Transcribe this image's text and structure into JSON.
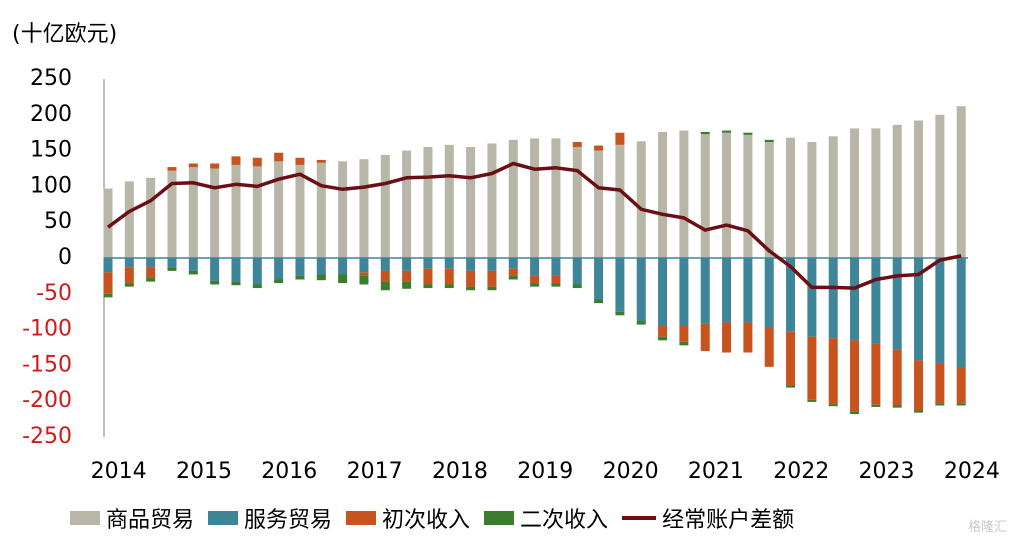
{
  "unit_label": "(十亿欧元)",
  "watermark": "格隆汇",
  "colors": {
    "goods": "#B8B6A6",
    "services": "#3D8597",
    "primary": "#C7531F",
    "secondary": "#3A7D2C",
    "current_account": "#6B0F14",
    "negative_tick": "#D11A1A",
    "zero_line": "#3D8597"
  },
  "chart_data": {
    "type": "bar",
    "stacked": true,
    "title": "",
    "xlabel": "",
    "ylabel": "(十亿欧元)",
    "ylim": [
      -250,
      250
    ],
    "yticks": [
      250,
      200,
      150,
      100,
      50,
      0,
      -50,
      -100,
      -150,
      -200,
      -250
    ],
    "year_labels": [
      "2014",
      "2015",
      "2016",
      "2017",
      "2018",
      "2019",
      "2020",
      "2021",
      "2022",
      "2023",
      "2024"
    ],
    "categories": [
      "2014Q1",
      "2014Q2",
      "2014Q3",
      "2014Q4",
      "2015Q1",
      "2015Q2",
      "2015Q3",
      "2015Q4",
      "2016Q1",
      "2016Q2",
      "2016Q3",
      "2016Q4",
      "2017Q1",
      "2017Q2",
      "2017Q3",
      "2017Q4",
      "2018Q1",
      "2018Q2",
      "2018Q3",
      "2018Q4",
      "2019Q1",
      "2019Q2",
      "2019Q3",
      "2019Q4",
      "2020Q1",
      "2020Q2",
      "2020Q3",
      "2020Q4",
      "2021Q1",
      "2021Q2",
      "2021Q3",
      "2021Q4",
      "2022Q1",
      "2022Q2",
      "2022Q3",
      "2022Q4",
      "2023Q1",
      "2023Q2",
      "2023Q3",
      "2023Q4",
      "2024Q1"
    ],
    "grid": false,
    "legend_position": "bottom",
    "series": [
      {
        "name": "商品贸易",
        "kind": "bar",
        "values": [
          97,
          107,
          112,
          122,
          127,
          125,
          130,
          128,
          135,
          130,
          133,
          135,
          138,
          144,
          150,
          155,
          158,
          155,
          160,
          165,
          167,
          167,
          155,
          150,
          158,
          163,
          176,
          178,
          173,
          175,
          172,
          162,
          168,
          162,
          170,
          181,
          181,
          186,
          192,
          200,
          212
        ]
      },
      {
        "name": "服务贸易",
        "kind": "bar",
        "values": [
          -20,
          -13,
          -13,
          -13,
          -18,
          -32,
          -33,
          -37,
          -30,
          -25,
          -23,
          -23,
          -20,
          -18,
          -18,
          -15,
          -15,
          -18,
          -18,
          -15,
          -25,
          -25,
          -37,
          -58,
          -75,
          -88,
          -95,
          -95,
          -92,
          -90,
          -90,
          -97,
          -103,
          -110,
          -112,
          -115,
          -120,
          -128,
          -143,
          -148,
          -153
        ]
      },
      {
        "name": "初次收入",
        "kind": "bar",
        "values": [
          -30,
          -22,
          -15,
          5,
          5,
          7,
          12,
          12,
          12,
          10,
          4,
          0,
          -5,
          -15,
          -15,
          -22,
          -22,
          -22,
          -22,
          -10,
          -10,
          -10,
          7,
          7,
          17,
          0,
          -15,
          -22,
          -38,
          -42,
          -42,
          -55,
          -75,
          -88,
          -92,
          -100,
          -85,
          -78,
          -70,
          -55,
          -50
        ]
      },
      {
        "name": "二次收入",
        "kind": "bar",
        "values": [
          -5,
          -5,
          -5,
          -5,
          -5,
          -5,
          -5,
          -5,
          -5,
          -5,
          -8,
          -12,
          -12,
          -12,
          -10,
          -5,
          -5,
          -5,
          -5,
          -5,
          -5,
          -5,
          -5,
          -5,
          -5,
          -5,
          -5,
          -5,
          3,
          3,
          3,
          3,
          -3,
          -3,
          -3,
          -3,
          -3,
          -3,
          -3,
          -3,
          -3
        ]
      },
      {
        "name": "经常账户差额",
        "kind": "line",
        "values": [
          43,
          65,
          80,
          104,
          105,
          98,
          103,
          100,
          110,
          117,
          101,
          96,
          99,
          104,
          112,
          113,
          115,
          112,
          118,
          132,
          124,
          126,
          122,
          98,
          95,
          68,
          61,
          56,
          39,
          46,
          38,
          10,
          -12,
          -41,
          -41,
          -42,
          -30,
          -25,
          -23,
          -3,
          3
        ]
      }
    ]
  },
  "legend": [
    {
      "label": "商品贸易",
      "color_key": "goods",
      "kind": "bar"
    },
    {
      "label": "服务贸易",
      "color_key": "services",
      "kind": "bar"
    },
    {
      "label": "初次收入",
      "color_key": "primary",
      "kind": "bar"
    },
    {
      "label": "二次收入",
      "color_key": "secondary",
      "kind": "bar"
    },
    {
      "label": "经常账户差额",
      "color_key": "current_account",
      "kind": "line"
    }
  ]
}
